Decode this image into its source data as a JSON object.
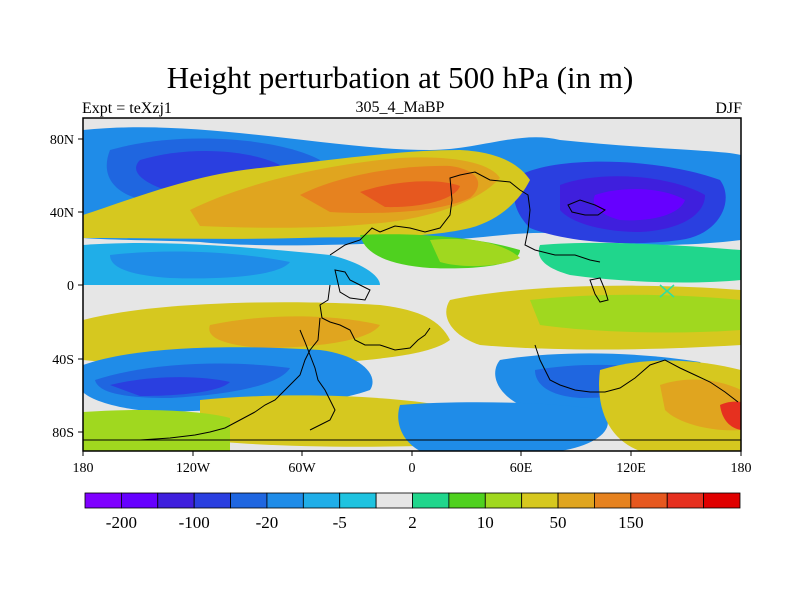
{
  "title": "Height perturbation at 500 hPa (in m)",
  "subtitle_left": "Expt = teXzj1",
  "subtitle_center": "305_4_MaBP",
  "subtitle_right": "DJF",
  "y_ticks": [
    "80N",
    "40N",
    "0",
    "40S",
    "80S"
  ],
  "x_ticks": [
    "180",
    "120W",
    "60W",
    "0",
    "60E",
    "120E",
    "180"
  ],
  "colorbar": {
    "colors": [
      "#7f00ff",
      "#6600ff",
      "#3f1fdd",
      "#2a3fe0",
      "#1f66e0",
      "#1f8ce8",
      "#20aee8",
      "#1fc3e0",
      "#e6e6e6",
      "#20d68c",
      "#4fd11f",
      "#a0d81f",
      "#d6c81f",
      "#e0a51f",
      "#e6821f",
      "#e6581f",
      "#e6301f",
      "#e00000"
    ],
    "labels": [
      {
        "text": "-200",
        "boundary": 1
      },
      {
        "text": "-100",
        "boundary": 3
      },
      {
        "text": "-20",
        "boundary": 5
      },
      {
        "text": "-5",
        "boundary": 7
      },
      {
        "text": "2",
        "boundary": 9
      },
      {
        "text": "10",
        "boundary": 11
      },
      {
        "text": "50",
        "boundary": 13
      },
      {
        "text": "150",
        "boundary": 15
      }
    ]
  },
  "palette": {
    "neutral": "#e6e6e6",
    "cyan": "#20aee8",
    "blue_light": "#1f8ce8",
    "blue": "#1f66e0",
    "blue_dark": "#2a3fe0",
    "indigo": "#3f1fdd",
    "violet": "#6600ff",
    "green_teal": "#20d68c",
    "green": "#4fd11f",
    "lime": "#a0d81f",
    "yellow": "#d6c81f",
    "orange_light": "#e0a51f",
    "orange": "#e6821f",
    "orange_dark": "#e6581f",
    "red": "#e6301f"
  }
}
